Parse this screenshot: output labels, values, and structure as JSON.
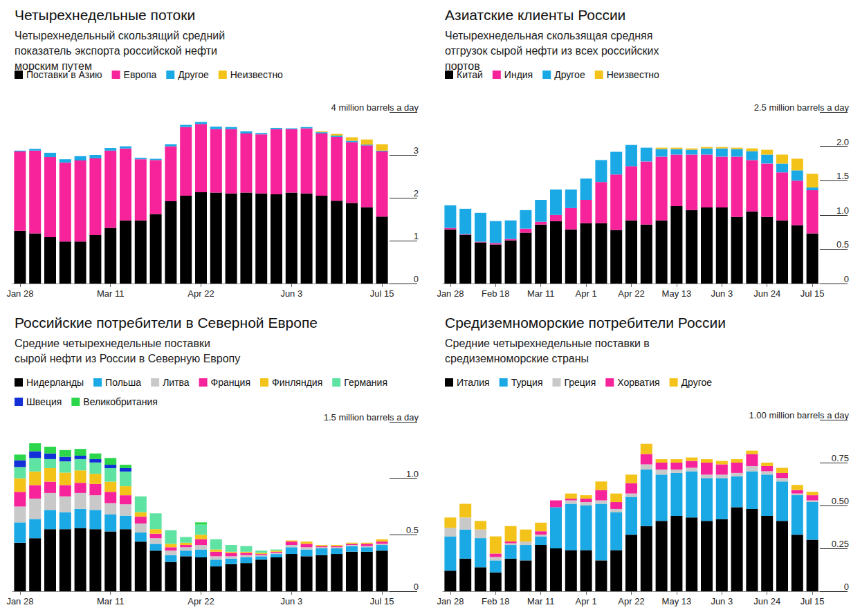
{
  "chart_data": [
    {
      "type": "bar",
      "title": "Четырехнедельные потоки",
      "subtitle": "Четырехнедельный скользящий средний показатель экспорта российской нефти морским путем",
      "categories": [
        "Jan 28",
        null,
        null,
        null,
        null,
        null,
        "Mar 11",
        null,
        null,
        null,
        null,
        null,
        "Apr 22",
        null,
        null,
        null,
        null,
        null,
        "Jun 3",
        null,
        null,
        null,
        null,
        null,
        "Jul 15"
      ],
      "series": [
        {
          "name": "Поставки в Азию",
          "color": "#000000",
          "values": [
            1.23,
            1.17,
            1.08,
            0.98,
            0.98,
            1.13,
            1.3,
            1.47,
            1.47,
            1.62,
            1.92,
            2.05,
            2.13,
            2.12,
            2.1,
            2.12,
            2.1,
            2.08,
            2.12,
            2.1,
            2.05,
            1.93,
            1.88,
            1.78,
            1.56
          ]
        },
        {
          "name": "Европа",
          "color": "#f7239a",
          "values": [
            1.85,
            1.93,
            1.87,
            1.84,
            1.89,
            1.79,
            1.8,
            1.68,
            1.43,
            1.26,
            1.28,
            1.6,
            1.59,
            1.48,
            1.5,
            1.38,
            1.38,
            1.52,
            1.48,
            1.52,
            1.45,
            1.49,
            1.42,
            1.44,
            1.52
          ]
        },
        {
          "name": "Другое",
          "color": "#1ba9e6",
          "values": [
            0.02,
            0.04,
            0.1,
            0.08,
            0.1,
            0.08,
            0.06,
            0.05,
            0.03,
            0.03,
            0.05,
            0.05,
            0.05,
            0.06,
            0.05,
            0.05,
            0.03,
            0.03,
            0.02,
            0.03,
            0.03,
            0.03,
            0.03,
            0.02,
            0.02
          ]
        },
        {
          "name": "Неизвестно",
          "color": "#f4c31a",
          "values": [
            0,
            0,
            0,
            0,
            0,
            0,
            0,
            0,
            0,
            0,
            0,
            0,
            0,
            0,
            0,
            0,
            0,
            0,
            0,
            0,
            0.02,
            0.04,
            0.08,
            0.12,
            0.15
          ]
        }
      ],
      "ylim": [
        0,
        4
      ],
      "yticks": [
        0,
        1,
        2,
        3,
        {
          "value": 4,
          "label": "4 million barrels a day"
        }
      ],
      "stacked": true,
      "grid": false,
      "legend": "top-left"
    },
    {
      "type": "bar",
      "title": "Азиатские клиенты России",
      "subtitle": "Четырехнедельная скользящая средняя отгрузок сырой нефти из всех российских портов",
      "categories": [
        "Jan 28",
        null,
        null,
        "Feb 18",
        null,
        null,
        "Mar 11",
        null,
        null,
        "Apr 1",
        null,
        null,
        "Apr 22",
        null,
        null,
        "May 13",
        null,
        null,
        "Jun 3",
        null,
        null,
        "Jun 24",
        null,
        null,
        "Jul 15"
      ],
      "series": [
        {
          "name": "Китай",
          "color": "#000000",
          "values": [
            0.79,
            0.71,
            0.6,
            0.57,
            0.63,
            0.74,
            0.86,
            0.91,
            0.79,
            0.88,
            0.88,
            0.78,
            0.92,
            0.86,
            0.92,
            1.13,
            1.07,
            1.11,
            1.11,
            0.97,
            1.05,
            0.97,
            0.92,
            0.85,
            0.73
          ]
        },
        {
          "name": "Индия",
          "color": "#f7239a",
          "values": [
            0.02,
            0.01,
            0.01,
            0.02,
            0.02,
            0.06,
            0.04,
            0.09,
            0.31,
            0.34,
            0.6,
            0.81,
            0.79,
            0.92,
            0.93,
            0.75,
            0.81,
            0.77,
            0.74,
            0.88,
            0.75,
            0.78,
            0.7,
            0.65,
            0.63
          ]
        },
        {
          "name": "Другое",
          "color": "#1ba9e6",
          "values": [
            0.33,
            0.37,
            0.42,
            0.32,
            0.27,
            0.27,
            0.32,
            0.37,
            0.27,
            0.31,
            0.32,
            0.33,
            0.31,
            0.2,
            0.11,
            0.08,
            0.07,
            0.09,
            0.12,
            0.11,
            0.13,
            0.13,
            0.13,
            0.15,
            0.04
          ]
        },
        {
          "name": "Неизвестно",
          "color": "#f4c31a",
          "values": [
            0,
            0,
            0,
            0,
            0,
            0,
            0,
            0,
            0,
            0,
            0,
            0,
            0,
            0,
            0.02,
            0.02,
            0.02,
            0.02,
            0.02,
            0.02,
            0.04,
            0.07,
            0.13,
            0.17,
            0.2
          ]
        }
      ],
      "ylim": [
        0,
        2.5
      ],
      "yticks": [
        0,
        0.5,
        {
          "value": 1,
          "label": "1.0"
        },
        1.5,
        {
          "value": 2,
          "label": "2.0"
        },
        {
          "value": 2.5,
          "label": "2.5 million barrels a day"
        }
      ],
      "stacked": true,
      "grid": false,
      "legend": "top-left"
    },
    {
      "type": "bar",
      "title": "Российские потребители в Северной Европе",
      "subtitle": "Средние четырехнедельные поставки сырой нефти из России в Северную Европу",
      "categories": [
        "Jan 28",
        null,
        null,
        null,
        null,
        null,
        "Mar 11",
        null,
        null,
        null,
        null,
        null,
        "Apr 22",
        null,
        null,
        null,
        null,
        null,
        "Jun 3",
        null,
        null,
        null,
        null,
        null,
        "Jul 15"
      ],
      "series": [
        {
          "name": "Нидерланды",
          "color": "#000000",
          "values": [
            0.43,
            0.47,
            0.55,
            0.55,
            0.56,
            0.55,
            0.53,
            0.55,
            0.44,
            0.36,
            0.26,
            0.31,
            0.3,
            0.22,
            0.24,
            0.25,
            0.28,
            0.3,
            0.33,
            0.31,
            0.32,
            0.33,
            0.35,
            0.35,
            0.36
          ]
        },
        {
          "name": "Польша",
          "color": "#1ba9e6",
          "values": [
            0.18,
            0.17,
            0.17,
            0.15,
            0.17,
            0.17,
            0.15,
            0.12,
            0.08,
            0.06,
            0.06,
            0.05,
            0.07,
            0.06,
            0.05,
            0.05,
            0.03,
            0.03,
            0.06,
            0.06,
            0.06,
            0.05,
            0.05,
            0.04,
            0.05
          ]
        },
        {
          "name": "Литва",
          "color": "#c9c9c9",
          "values": [
            0.14,
            0.18,
            0.15,
            0.14,
            0.14,
            0.13,
            0.1,
            0.1,
            0.08,
            0.05,
            0.04,
            0.03,
            0.04,
            0.03,
            0.02,
            0.02,
            0.01,
            0.01,
            0.02,
            0.02,
            0.01,
            0.01,
            0.01,
            0.01,
            0.01
          ]
        },
        {
          "name": "Франция",
          "color": "#f7239a",
          "values": [
            0.13,
            0.12,
            0.1,
            0.1,
            0.09,
            0.1,
            0.1,
            0.08,
            0.06,
            0.04,
            0.03,
            0.02,
            0.05,
            0.04,
            0.03,
            0.02,
            0.01,
            0.01,
            0.03,
            0.03,
            0.01,
            0.01,
            0.01,
            0.02,
            0.02
          ]
        },
        {
          "name": "Финляндия",
          "color": "#f4c31a",
          "values": [
            0.12,
            0.12,
            0.12,
            0.11,
            0.11,
            0.09,
            0.09,
            0.08,
            0.04,
            0.04,
            0.03,
            0.02,
            0.04,
            0.02,
            0.01,
            0.01,
            0.01,
            0.01,
            0.01,
            0.02,
            0.01,
            0.01,
            0.01,
            0.01,
            0.02
          ]
        },
        {
          "name": "Германия",
          "color": "#5ee3a2",
          "values": [
            0.1,
            0.12,
            0.08,
            0.1,
            0.1,
            0.1,
            0.12,
            0.13,
            0.14,
            0.14,
            0.12,
            0.05,
            0.09,
            0.09,
            0.06,
            0.05,
            0.02,
            0.01,
            0,
            0,
            0,
            0,
            0,
            0,
            0
          ]
        },
        {
          "name": "Швеция",
          "color": "#1330d8",
          "values": [
            0.06,
            0.06,
            0.05,
            0.04,
            0.03,
            0.03,
            0.03,
            0.03,
            0,
            0,
            0,
            0,
            0,
            0,
            0,
            0,
            0,
            0,
            0,
            0,
            0,
            0,
            0,
            0,
            0
          ]
        },
        {
          "name": "Великобритания",
          "color": "#2bd64b",
          "values": [
            0.05,
            0.07,
            0.06,
            0.06,
            0.06,
            0.05,
            0.06,
            0.03,
            0,
            0,
            0,
            0,
            0.02,
            0,
            0,
            0,
            0,
            0,
            0,
            0,
            0,
            0,
            0,
            0,
            0
          ]
        }
      ],
      "ylim": [
        0,
        1.5
      ],
      "yticks": [
        0,
        0.5,
        {
          "value": 1,
          "label": "1.0"
        },
        {
          "value": 1.5,
          "label": "1.5 million barrels a day"
        }
      ],
      "stacked": true,
      "grid": false,
      "legend": "top-left"
    },
    {
      "type": "bar",
      "title": "Средиземноморские потребители России",
      "subtitle": "Средние четырехнедельные поставки в средиземноморские страны",
      "categories": [
        "Jan 28",
        null,
        null,
        "Feb 18",
        null,
        null,
        "Mar 11",
        null,
        null,
        "Apr 1",
        null,
        null,
        "Apr 22",
        null,
        null,
        "May 13",
        null,
        null,
        "Jun 3",
        null,
        null,
        "Jun 24",
        null,
        null,
        "Jul 15"
      ],
      "series": [
        {
          "name": "Италия",
          "color": "#000000",
          "values": [
            0.12,
            0.19,
            0.14,
            0.11,
            0.19,
            0.18,
            0.27,
            0.25,
            0.24,
            0.24,
            0.18,
            0.24,
            0.33,
            0.38,
            0.41,
            0.44,
            0.43,
            0.41,
            0.42,
            0.49,
            0.48,
            0.44,
            0.41,
            0.33,
            0.3
          ]
        },
        {
          "name": "Турция",
          "color": "#1ba9e6",
          "values": [
            0.2,
            0.17,
            0.17,
            0.07,
            0.08,
            0.09,
            0.05,
            0.24,
            0.27,
            0.26,
            0.33,
            0.22,
            0.22,
            0.33,
            0.27,
            0.25,
            0.27,
            0.25,
            0.24,
            0.18,
            0.22,
            0.24,
            0.23,
            0.23,
            0.22
          ]
        },
        {
          "name": "Греция",
          "color": "#c9c9c9",
          "values": [
            0.05,
            0.07,
            0.05,
            0.02,
            0.01,
            0.02,
            0.01,
            0,
            0.02,
            0.02,
            0.02,
            0.02,
            0.02,
            0.03,
            0.03,
            0.02,
            0.02,
            0.02,
            0.02,
            0.02,
            0.03,
            0.02,
            0.02,
            0.01,
            0.01
          ]
        },
        {
          "name": "Хорватия",
          "color": "#f7239a",
          "values": [
            0,
            0,
            0,
            0.02,
            0.01,
            0,
            0.02,
            0.04,
            0.01,
            0.02,
            0.06,
            0.04,
            0.06,
            0.06,
            0.04,
            0.04,
            0.04,
            0.07,
            0.06,
            0.06,
            0.07,
            0.03,
            0.03,
            0.02,
            0.03
          ]
        },
        {
          "name": "Другое",
          "color": "#f4c31a",
          "values": [
            0.06,
            0.08,
            0.05,
            0.1,
            0.09,
            0.07,
            0.05,
            0,
            0.03,
            0.02,
            0.05,
            0.05,
            0.05,
            0.06,
            0.02,
            0.02,
            0.02,
            0.02,
            0.02,
            0.02,
            0.02,
            0.02,
            0.03,
            0.03,
            0.02
          ]
        }
      ],
      "ylim": [
        0,
        1
      ],
      "yticks": [
        0,
        0.25,
        {
          "value": 0.5,
          "label": "0.50"
        },
        0.75,
        {
          "value": 1,
          "label": "1.00 million barrels a day"
        }
      ],
      "stacked": true,
      "grid": false,
      "legend": "top-left"
    }
  ]
}
